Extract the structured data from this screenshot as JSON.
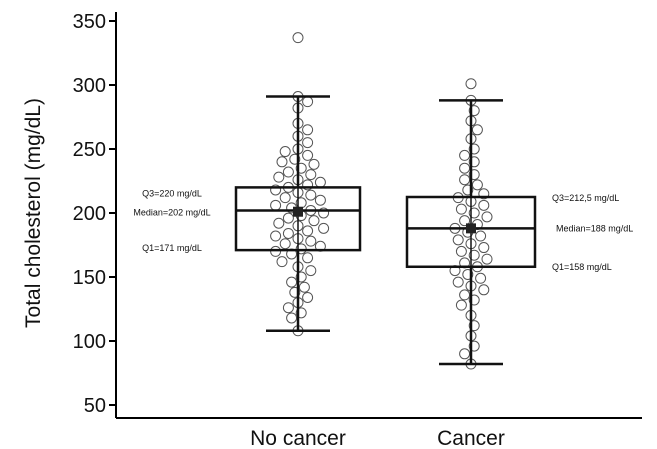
{
  "chart_data": {
    "type": "box",
    "ylabel": "Total cholesterol (mg/dL)",
    "xlabel": "",
    "ylim": [
      40,
      355
    ],
    "yticks": [
      50,
      100,
      150,
      200,
      250,
      300,
      350
    ],
    "grid": false,
    "categories": [
      "No cancer",
      "Cancer"
    ],
    "boxes": [
      {
        "category": "No cancer",
        "whisker_low": 108,
        "q1": 171,
        "median": 202,
        "q3": 220,
        "whisker_high": 291,
        "mean": 201,
        "annotations": {
          "q3": "Q3=220 mg/dL",
          "median": "Median=202 mg/dL",
          "q1": "Q1=171 mg/dL"
        },
        "points": [
          337,
          291,
          287,
          282,
          270,
          265,
          260,
          255,
          250,
          248,
          245,
          242,
          240,
          238,
          235,
          232,
          230,
          228,
          226,
          224,
          222,
          220,
          218,
          216,
          214,
          212,
          210,
          208,
          206,
          204,
          202,
          200,
          198,
          196,
          194,
          192,
          190,
          188,
          186,
          184,
          182,
          180,
          178,
          176,
          174,
          172,
          170,
          168,
          165,
          162,
          158,
          155,
          150,
          146,
          142,
          138,
          134,
          130,
          126,
          122,
          118,
          108
        ]
      },
      {
        "category": "Cancer",
        "whisker_low": 82,
        "q1": 158,
        "median": 188,
        "q3": 212.5,
        "whisker_high": 288,
        "mean": 188,
        "annotations": {
          "q3": "Q3=212,5 mg/dL",
          "median": "Median=188 mg/dL",
          "q1": "Q1=158 mg/dL"
        },
        "points": [
          301,
          288,
          280,
          272,
          265,
          258,
          250,
          245,
          240,
          235,
          230,
          226,
          222,
          218,
          215,
          212,
          209,
          206,
          203,
          200,
          197,
          194,
          191,
          188,
          185,
          182,
          179,
          176,
          173,
          170,
          167,
          164,
          161,
          158,
          155,
          152,
          149,
          146,
          143,
          140,
          136,
          132,
          128,
          120,
          112,
          104,
          96,
          90,
          82
        ]
      }
    ]
  }
}
